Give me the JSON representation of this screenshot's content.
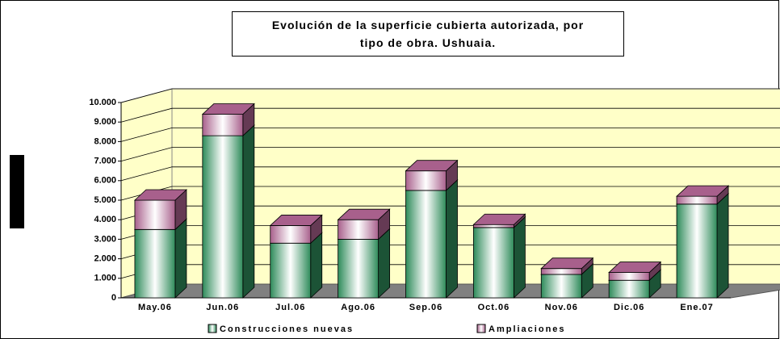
{
  "chart_data": {
    "type": "bar3d",
    "stacked": true,
    "title": "Evolución de la superficie cubierta autorizada, por tipo de obra. Ushuaia.",
    "categories": [
      "May.06",
      "Jun.06",
      "Jul.06",
      "Ago.06",
      "Sep.06",
      "Oct.06",
      "Nov.06",
      "Dic.06",
      "Ene.07"
    ],
    "series": [
      {
        "name": "Construcciones nuevas",
        "color": "#2e8b5a",
        "values": [
          3500,
          8300,
          2800,
          3000,
          5500,
          3600,
          1200,
          900,
          4800
        ]
      },
      {
        "name": "Ampliaciones",
        "color": "#a8608c",
        "values": [
          1500,
          1100,
          900,
          1000,
          1000,
          150,
          300,
          400,
          400
        ]
      }
    ],
    "ylim": [
      0,
      10000
    ],
    "yticks": [
      0,
      {
        "value": 1000,
        "label": "1.000"
      },
      {
        "value": 2000,
        "label": "2.000"
      },
      {
        "value": 3000,
        "label": "3.000"
      },
      {
        "value": 4000,
        "label": "4.000"
      },
      {
        "value": 5000,
        "label": "5.000"
      },
      {
        "value": 6000,
        "label": "6.000"
      },
      {
        "value": 7000,
        "label": "7.000"
      },
      {
        "value": 8000,
        "label": "8.000"
      },
      {
        "value": 9000,
        "label": "9.000"
      },
      {
        "value": 10000,
        "label": "10.000"
      }
    ],
    "grid": true,
    "legend": "bottom"
  }
}
